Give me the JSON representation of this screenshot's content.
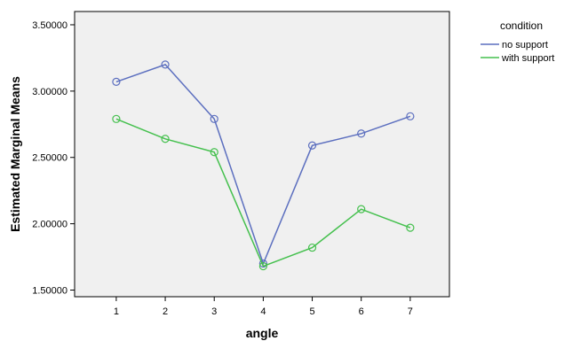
{
  "chart_data": {
    "type": "line",
    "xlabel": "angle",
    "ylabel": "Estimated Marginal Means",
    "categories": [
      "1",
      "2",
      "3",
      "4",
      "5",
      "6",
      "7"
    ],
    "ylim": [
      1.45,
      3.6
    ],
    "yticks": [
      "1.50000",
      "2.00000",
      "2.50000",
      "3.00000",
      "3.50000"
    ],
    "ytick_values": [
      1.5,
      2.0,
      2.5,
      3.0,
      3.5
    ],
    "grid": false,
    "legend": {
      "title": "condition",
      "placement": "right"
    },
    "series": [
      {
        "name": "no support",
        "color": "#5c6fbf",
        "values": [
          3.07,
          3.2,
          2.79,
          1.7,
          2.59,
          2.68,
          2.81
        ]
      },
      {
        "name": "with support",
        "color": "#45c04e",
        "values": [
          2.79,
          2.64,
          2.54,
          1.68,
          1.82,
          2.11,
          1.97
        ]
      }
    ]
  }
}
